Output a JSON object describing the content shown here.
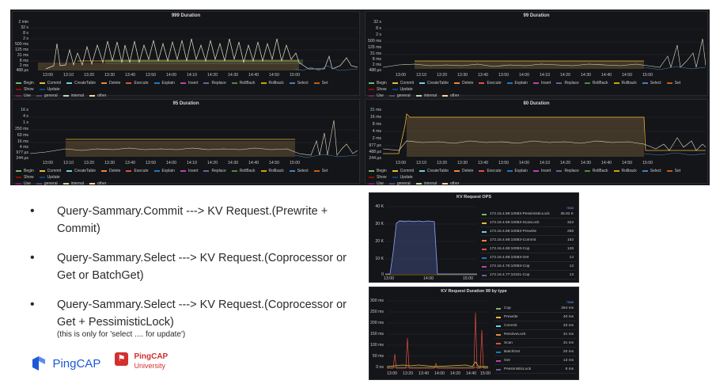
{
  "panels": [
    {
      "title": "999 Duration",
      "y_ticks": [
        "2 min",
        "32 s",
        "8 s",
        "2 s",
        "500 ms",
        "125 ms",
        "31 ms",
        "8 ms",
        "2 ms",
        "488 µs"
      ]
    },
    {
      "title": "99 Duration",
      "y_ticks": [
        "32 s",
        "8 s",
        "2 s",
        "500 ms",
        "125 ms",
        "31 ms",
        "8 ms",
        "2 ms",
        "488 µs"
      ]
    },
    {
      "title": "95 Duration",
      "y_ticks": [
        "16 s",
        "4 s",
        "1 s",
        "250 ms",
        "63 ms",
        "16 ms",
        "4 ms",
        "977 µs",
        "244 µs"
      ]
    },
    {
      "title": "80 Duration",
      "y_ticks": [
        "31 ms",
        "16 ms",
        "8 ms",
        "4 ms",
        "2 ms",
        "977 µs",
        "488 µs",
        "244 µs"
      ]
    }
  ],
  "x_ticks": [
    "13:00",
    "13:10",
    "13:20",
    "13:30",
    "13:40",
    "13:50",
    "14:00",
    "14:10",
    "14:20",
    "14:30",
    "14:40",
    "14:50",
    "15:00"
  ],
  "legend_row1": [
    {
      "label": "Begin",
      "color": "#7eb26d"
    },
    {
      "label": "Commit",
      "color": "#eab839"
    },
    {
      "label": "CreateTable",
      "color": "#6ed0e0"
    },
    {
      "label": "Delete",
      "color": "#ef843c"
    },
    {
      "label": "Execute",
      "color": "#e24d42"
    },
    {
      "label": "Explain",
      "color": "#1f78c1"
    },
    {
      "label": "Insert",
      "color": "#ba43a9"
    },
    {
      "label": "Replace",
      "color": "#705da0"
    },
    {
      "label": "RollBack",
      "color": "#508642"
    },
    {
      "label": "Rollback",
      "color": "#cca300"
    },
    {
      "label": "Select",
      "color": "#447ebc"
    },
    {
      "label": "Set",
      "color": "#c15c17"
    },
    {
      "label": "Show",
      "color": "#890f02"
    },
    {
      "label": "Update",
      "color": "#0a437c"
    }
  ],
  "legend_row2": [
    {
      "label": "Use",
      "color": "#6d1f62"
    },
    {
      "label": "general",
      "color": "#584477"
    },
    {
      "label": "internal",
      "color": "#b7dbab"
    },
    {
      "label": "other",
      "color": "#f4d598"
    }
  ],
  "bullets": [
    "Query-Sammary.Commit ---> KV Request.(Prewrite + Commit)",
    "Query-Sammary.Select ---> KV Request.(Coprocessor or Get or BatchGet)",
    "Query-Sammary.Select ---> KV Request.(Coprocessor or Get + PessimisticLock)"
  ],
  "bullet_note": "(this is only for 'select .... for update')",
  "kv_ops": {
    "title": "KV Request OPS",
    "y_ticks": [
      "40 K",
      "30 K",
      "20 K",
      "10 K",
      "0"
    ],
    "x_ticks": [
      "13:00",
      "14:00",
      "15:00"
    ],
    "header": "max",
    "rows": [
      {
        "name": "172.16.4.69:10083-PessimisticLock",
        "value": "36.92 K",
        "color": "#7eb26d"
      },
      {
        "name": "172.16.4.69:10083-ScanLock",
        "value": "323",
        "color": "#eab839"
      },
      {
        "name": "172.16.4.69:10083-Prewrite",
        "value": "258",
        "color": "#6ed0e0"
      },
      {
        "name": "172.16.4.69:10083-Commit",
        "value": "183",
        "color": "#ef843c"
      },
      {
        "name": "172.16.4.69:10083-Cop",
        "value": "128",
        "color": "#e24d42"
      },
      {
        "name": "172.16.4.69:10083-Get",
        "value": "14",
        "color": "#1f78c1"
      },
      {
        "name": "172.16.4.76:10083-Cop",
        "value": "13",
        "color": "#ba43a9"
      },
      {
        "name": "172.16.4.77:10101-Cop",
        "value": "13",
        "color": "#705da0"
      }
    ]
  },
  "kv_dur": {
    "title": "KV Request Duration 99 by type",
    "y_ticks": [
      "300 ms",
      "250 ms",
      "200 ms",
      "150 ms",
      "100 ms",
      "50 ms",
      "0 ns"
    ],
    "x_ticks": [
      "13:00",
      "13:20",
      "13:40",
      "14:00",
      "14:20",
      "14:40",
      "15:00"
    ],
    "header": "max",
    "rows": [
      {
        "name": "Cop",
        "value": "264 ms",
        "color": "#7eb26d"
      },
      {
        "name": "Prewrite",
        "value": "40 ms",
        "color": "#eab839"
      },
      {
        "name": "Commit",
        "value": "33 ms",
        "color": "#6ed0e0"
      },
      {
        "name": "ResolveLock",
        "value": "31 ms",
        "color": "#ef843c"
      },
      {
        "name": "Scan",
        "value": "31 ms",
        "color": "#e24d42"
      },
      {
        "name": "BatchGet",
        "value": "20 ms",
        "color": "#1f78c1"
      },
      {
        "name": "Get",
        "value": "13 ms",
        "color": "#ba43a9"
      },
      {
        "name": "PessimisticLock",
        "value": "8 ms",
        "color": "#705da0"
      }
    ]
  },
  "logos": {
    "pingcap": "PingCAP",
    "university_top": "PingCAP",
    "university_bottom": "University"
  },
  "colors": {
    "pingcap_blue": "#1e58d6",
    "univ_red": "#d32f2f"
  }
}
